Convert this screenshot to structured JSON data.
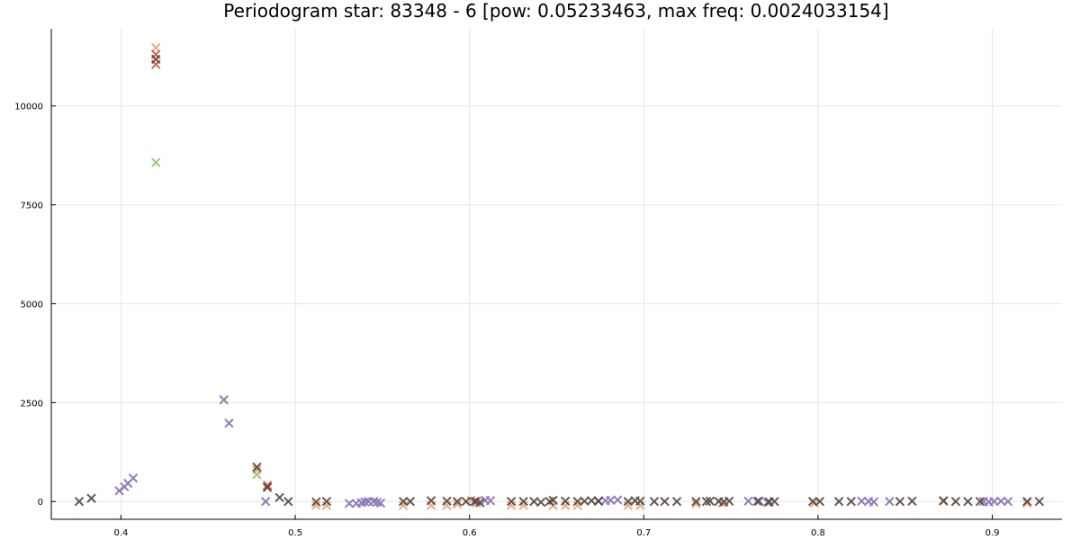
{
  "chart_data": {
    "type": "scatter",
    "title": "Periodogram star: 83348 - 6 [pow: 0.05233463, max freq: 0.0024033154]",
    "xlabel": "",
    "ylabel": "",
    "xlim": [
      0.36,
      0.94
    ],
    "ylim": [
      -450,
      11950
    ],
    "grid": true,
    "legend": "none",
    "marker": "x",
    "x_ticks": [
      0.4,
      0.5,
      0.6,
      0.7,
      0.8,
      0.9
    ],
    "x_tick_labels": [
      "0.4",
      "0.5",
      "0.6",
      "0.7",
      "0.8",
      "0.9"
    ],
    "y_ticks": [
      0,
      2500,
      5000,
      7500,
      10000
    ],
    "y_tick_labels": [
      "0",
      "2500",
      "5000",
      "7500",
      "10000"
    ],
    "series": [
      {
        "color": "#e8a06a",
        "points": [
          [
            0.42,
            11470
          ],
          [
            0.478,
            800
          ],
          [
            0.484,
            350
          ],
          [
            0.512,
            -100
          ],
          [
            0.518,
            -100
          ],
          [
            0.562,
            -100
          ],
          [
            0.578,
            -100
          ],
          [
            0.587,
            -100
          ],
          [
            0.593,
            -70
          ],
          [
            0.601,
            30
          ],
          [
            0.604,
            -40
          ],
          [
            0.624,
            -100
          ],
          [
            0.631,
            -100
          ],
          [
            0.648,
            -100
          ],
          [
            0.655,
            -100
          ],
          [
            0.662,
            -100
          ],
          [
            0.691,
            -100
          ],
          [
            0.698,
            -100
          ],
          [
            0.73,
            -60
          ],
          [
            0.745,
            -40
          ],
          [
            0.798,
            -40
          ],
          [
            0.872,
            0
          ],
          [
            0.92,
            -40
          ]
        ]
      },
      {
        "color": "#d04a3a",
        "points": [
          [
            0.42,
            11050
          ],
          [
            0.42,
            11300
          ],
          [
            0.484,
            410
          ]
        ]
      },
      {
        "color": "#8cbd5c",
        "points": [
          [
            0.42,
            8570
          ],
          [
            0.478,
            680
          ]
        ]
      },
      {
        "color": "#8165b0",
        "points": [
          [
            0.399,
            270
          ],
          [
            0.402,
            370
          ],
          [
            0.404,
            460
          ],
          [
            0.407,
            590
          ],
          [
            0.459,
            2570
          ],
          [
            0.462,
            1980
          ],
          [
            0.483,
            0
          ],
          [
            0.531,
            -50
          ],
          [
            0.535,
            -50
          ],
          [
            0.538,
            -30
          ],
          [
            0.54,
            -10
          ],
          [
            0.542,
            0
          ],
          [
            0.545,
            0
          ],
          [
            0.547,
            -20
          ],
          [
            0.549,
            -40
          ],
          [
            0.604,
            10
          ],
          [
            0.609,
            30
          ],
          [
            0.612,
            20
          ],
          [
            0.674,
            10
          ],
          [
            0.678,
            20
          ],
          [
            0.681,
            30
          ],
          [
            0.685,
            40
          ],
          [
            0.76,
            10
          ],
          [
            0.765,
            0
          ],
          [
            0.771,
            -20
          ],
          [
            0.825,
            10
          ],
          [
            0.829,
            0
          ],
          [
            0.832,
            -10
          ],
          [
            0.841,
            0
          ],
          [
            0.895,
            0
          ],
          [
            0.898,
            -10
          ],
          [
            0.901,
            0
          ],
          [
            0.905,
            10
          ],
          [
            0.909,
            0
          ]
        ]
      },
      {
        "color": "#4a3a33",
        "points": [
          [
            0.376,
            0
          ],
          [
            0.383,
            80
          ],
          [
            0.42,
            11180
          ],
          [
            0.478,
            870
          ],
          [
            0.484,
            360
          ],
          [
            0.491,
            100
          ],
          [
            0.496,
            0
          ],
          [
            0.512,
            -10
          ],
          [
            0.518,
            0
          ],
          [
            0.562,
            0
          ],
          [
            0.566,
            0
          ],
          [
            0.578,
            20
          ],
          [
            0.587,
            10
          ],
          [
            0.593,
            0
          ],
          [
            0.598,
            0
          ],
          [
            0.603,
            0
          ],
          [
            0.606,
            -30
          ],
          [
            0.624,
            0
          ],
          [
            0.631,
            0
          ],
          [
            0.637,
            0
          ],
          [
            0.641,
            -20
          ],
          [
            0.646,
            0
          ],
          [
            0.648,
            30
          ],
          [
            0.655,
            10
          ],
          [
            0.662,
            0
          ],
          [
            0.666,
            10
          ],
          [
            0.67,
            20
          ],
          [
            0.674,
            10
          ],
          [
            0.691,
            0
          ],
          [
            0.695,
            20
          ],
          [
            0.698,
            10
          ],
          [
            0.706,
            0
          ],
          [
            0.712,
            0
          ],
          [
            0.719,
            0
          ],
          [
            0.73,
            0
          ],
          [
            0.736,
            0
          ],
          [
            0.738,
            10
          ],
          [
            0.743,
            0
          ],
          [
            0.746,
            -10
          ],
          [
            0.749,
            10
          ],
          [
            0.766,
            10
          ],
          [
            0.772,
            -10
          ],
          [
            0.775,
            0
          ],
          [
            0.797,
            0
          ],
          [
            0.801,
            0
          ],
          [
            0.812,
            0
          ],
          [
            0.819,
            0
          ],
          [
            0.847,
            0
          ],
          [
            0.854,
            10
          ],
          [
            0.872,
            20
          ],
          [
            0.879,
            0
          ],
          [
            0.886,
            0
          ],
          [
            0.893,
            0
          ],
          [
            0.92,
            0
          ],
          [
            0.927,
            0
          ]
        ]
      }
    ]
  }
}
